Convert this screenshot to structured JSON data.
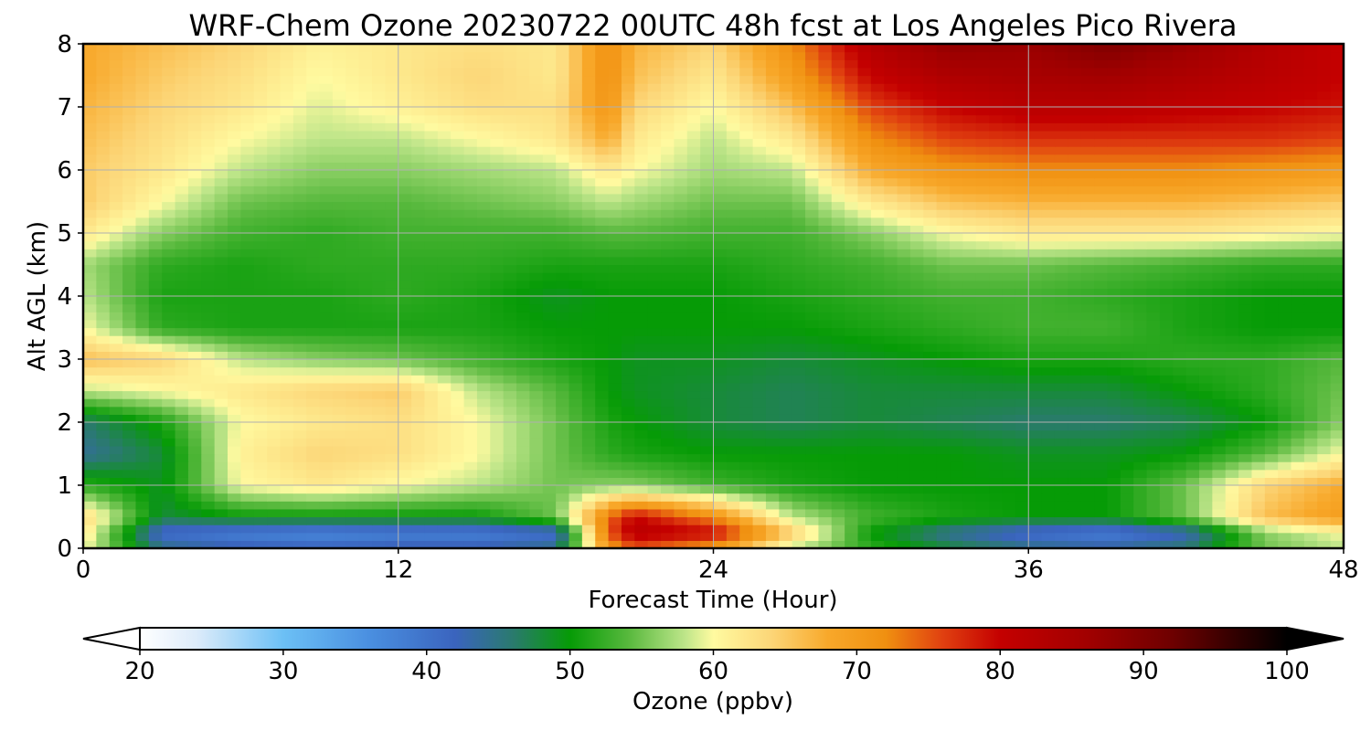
{
  "chart_data": {
    "type": "heatmap",
    "title": "WRF-Chem Ozone  20230722 00UTC 48h fcst at Los Angeles Pico Rivera",
    "xlabel": "Forecast Time (Hour)",
    "ylabel": "Alt AGL (km)",
    "xlim": [
      0,
      48
    ],
    "ylim": [
      0,
      8
    ],
    "xticks": [
      0,
      12,
      24,
      36,
      48
    ],
    "yticks": [
      0,
      1,
      2,
      3,
      4,
      5,
      6,
      7,
      8
    ],
    "grid": true,
    "x": [
      0,
      3,
      6,
      9,
      12,
      15,
      18,
      20,
      21,
      24,
      27,
      30,
      33,
      36,
      39,
      42,
      45,
      48
    ],
    "y": [
      0,
      0.25,
      0.5,
      1,
      1.5,
      2,
      2.5,
      3,
      3.5,
      4,
      4.5,
      5,
      5.5,
      6,
      6.5,
      7,
      7.5,
      8
    ],
    "z": [
      [
        60,
        45,
        43,
        42,
        43,
        43,
        45,
        70,
        75,
        70,
        58,
        52,
        48,
        45,
        44,
        46,
        55,
        58
      ],
      [
        62,
        40,
        38,
        37,
        38,
        38,
        40,
        75,
        82,
        80,
        65,
        50,
        44,
        40,
        38,
        42,
        56,
        60
      ],
      [
        64,
        48,
        50,
        50,
        50,
        50,
        55,
        74,
        80,
        72,
        58,
        53,
        51,
        50,
        50,
        55,
        66,
        70
      ],
      [
        52,
        49,
        60,
        62,
        60,
        58,
        55,
        56,
        56,
        53,
        51,
        50,
        50,
        50,
        50,
        55,
        64,
        68
      ],
      [
        44,
        48,
        61,
        64,
        63,
        60,
        55,
        52,
        51,
        50,
        50,
        50,
        50,
        49,
        49,
        50,
        54,
        60
      ],
      [
        46,
        51,
        60,
        62,
        63,
        60,
        55,
        51,
        50,
        48,
        47,
        48,
        47,
        46,
        46,
        47,
        50,
        56
      ],
      [
        58,
        60,
        62,
        64,
        65,
        58,
        54,
        50,
        49,
        48,
        47,
        48,
        48,
        48,
        48,
        50,
        52,
        55
      ],
      [
        66,
        64,
        58,
        56,
        55,
        53,
        51,
        50,
        49,
        49,
        48,
        49,
        50,
        51,
        51,
        52,
        52,
        54
      ],
      [
        60,
        52,
        51,
        51,
        51,
        51,
        50,
        50,
        50,
        50,
        50,
        51,
        52,
        53,
        53,
        51,
        50,
        50
      ],
      [
        58,
        51,
        51,
        51,
        52,
        51,
        49,
        50,
        50,
        50,
        51,
        52,
        53,
        53,
        52,
        51,
        50,
        50
      ],
      [
        57,
        52,
        51,
        52,
        52,
        52,
        51,
        51,
        51,
        51,
        52,
        53,
        55,
        55,
        54,
        53,
        52,
        52
      ],
      [
        62,
        56,
        53,
        52,
        53,
        53,
        53,
        54,
        54,
        53,
        53,
        56,
        60,
        62,
        62,
        62,
        61,
        60
      ],
      [
        65,
        60,
        55,
        54,
        54,
        55,
        56,
        58,
        57,
        55,
        55,
        62,
        66,
        67,
        67,
        67,
        66,
        65
      ],
      [
        65,
        62,
        58,
        56,
        56,
        57,
        58,
        62,
        60,
        57,
        58,
        68,
        71,
        72,
        72,
        72,
        71,
        70
      ],
      [
        66,
        63,
        60,
        58,
        58,
        60,
        62,
        68,
        62,
        58,
        62,
        72,
        76,
        77,
        77,
        77,
        77,
        76
      ],
      [
        67,
        64,
        62,
        59,
        61,
        63,
        63,
        71,
        64,
        60,
        66,
        76,
        80,
        82,
        82,
        81,
        80,
        79
      ],
      [
        68,
        65,
        63,
        60,
        62,
        64,
        62,
        72,
        66,
        62,
        70,
        80,
        84,
        85,
        86,
        84,
        82,
        80
      ],
      [
        68,
        66,
        64,
        61,
        62,
        63,
        62,
        72,
        67,
        64,
        72,
        83,
        88,
        87,
        90,
        87,
        83,
        80
      ]
    ],
    "colorbar": {
      "label": "Ozone  (ppbv)",
      "min": 20,
      "max": 100,
      "ticks": [
        20,
        30,
        40,
        50,
        60,
        70,
        80,
        90,
        100
      ],
      "extend": "both",
      "stops": [
        {
          "v": 20,
          "c": "#ffffff"
        },
        {
          "v": 24,
          "c": "#dcebfa"
        },
        {
          "v": 30,
          "c": "#6cc0f5"
        },
        {
          "v": 36,
          "c": "#4a8fe0"
        },
        {
          "v": 42,
          "c": "#3a64be"
        },
        {
          "v": 46,
          "c": "#2a7a6e"
        },
        {
          "v": 50,
          "c": "#069b06"
        },
        {
          "v": 54,
          "c": "#56b83c"
        },
        {
          "v": 58,
          "c": "#bde589"
        },
        {
          "v": 60,
          "c": "#fffaa0"
        },
        {
          "v": 64,
          "c": "#fcd678"
        },
        {
          "v": 68,
          "c": "#f8a82a"
        },
        {
          "v": 72,
          "c": "#f09010"
        },
        {
          "v": 76,
          "c": "#e04010"
        },
        {
          "v": 80,
          "c": "#c40000"
        },
        {
          "v": 86,
          "c": "#a20000"
        },
        {
          "v": 92,
          "c": "#6e0000"
        },
        {
          "v": 100,
          "c": "#000000"
        }
      ]
    }
  }
}
